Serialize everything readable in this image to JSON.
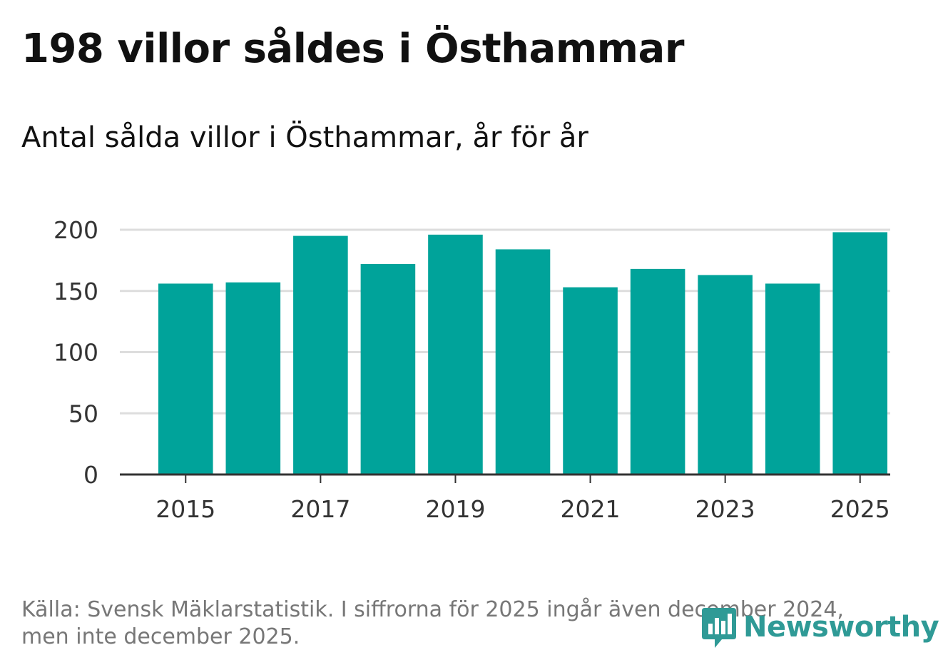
{
  "title": "198 villor såldes i Östhammar",
  "subtitle": "Antal sålda villor i Östhammar, år för år",
  "footer": {
    "line1": "Källa: Svensk Mäklarstatistik. I siffrorna för 2025 ingår även december 2024,",
    "line2": "men inte december 2025."
  },
  "logo": {
    "text": "Newsworthy",
    "icon": "bar-chart-speech-bubble-icon",
    "color": "#2f9a96"
  },
  "chart_data": {
    "type": "bar",
    "title": "198 villor såldes i Östhammar",
    "subtitle": "Antal sålda villor i Östhammar, år för år",
    "xlabel": "",
    "ylabel": "",
    "categories": [
      "2015",
      "2016",
      "2017",
      "2018",
      "2019",
      "2020",
      "2021",
      "2022",
      "2023",
      "2024",
      "2025"
    ],
    "values": [
      156,
      157,
      195,
      172,
      196,
      184,
      153,
      168,
      163,
      156,
      198
    ],
    "x_tick_labels": [
      "2015",
      "2017",
      "2019",
      "2021",
      "2023",
      "2025"
    ],
    "y_ticks": [
      0,
      50,
      100,
      150,
      200
    ],
    "ylim": [
      0,
      200
    ],
    "grid": true,
    "bar_color": "#00a39a",
    "grid_color": "#dddddd",
    "axis_color": "#333333"
  }
}
